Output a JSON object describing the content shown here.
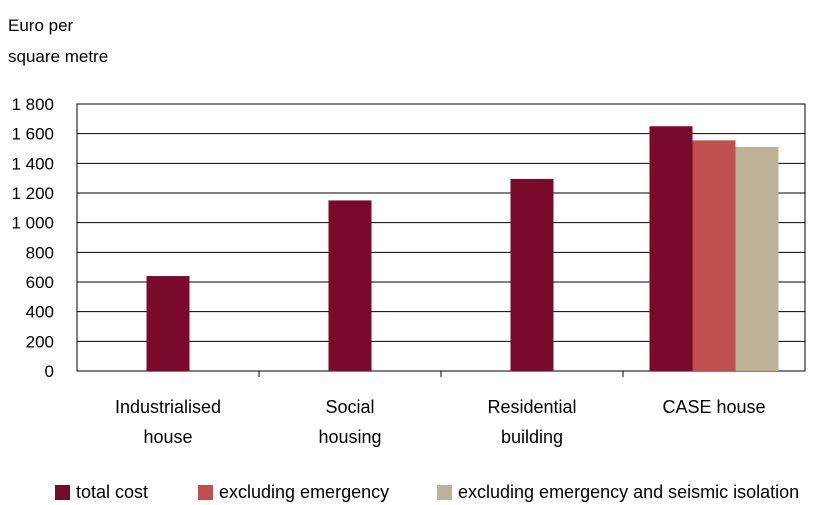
{
  "chart_data": {
    "type": "bar",
    "ylabel_lines": [
      "Euro per",
      "square metre"
    ],
    "xlabel": "",
    "ylim": [
      0,
      1800
    ],
    "yticks": [
      0,
      200,
      400,
      600,
      800,
      1000,
      1200,
      1400,
      1600,
      1800
    ],
    "ytick_labels": [
      "0",
      "200",
      "400",
      "600",
      "800",
      "1 000",
      "1 200",
      "1 400",
      "1 600",
      "1 800"
    ],
    "grid": true,
    "legend_position": "bottom",
    "categories": [
      [
        "Industrialised",
        "house"
      ],
      [
        "Social",
        "housing"
      ],
      [
        "Residential",
        "building"
      ],
      [
        "CASE house"
      ]
    ],
    "series": [
      {
        "name": "total cost",
        "color": "#7a0a2b",
        "values": [
          640,
          1150,
          1295,
          1650
        ]
      },
      {
        "name": "excluding emergency",
        "color": "#c0504d",
        "values": [
          null,
          null,
          null,
          1555
        ]
      },
      {
        "name": "excluding emergency and seismic isolation",
        "color": "#bdb297",
        "values": [
          null,
          null,
          null,
          1510
        ]
      }
    ]
  }
}
